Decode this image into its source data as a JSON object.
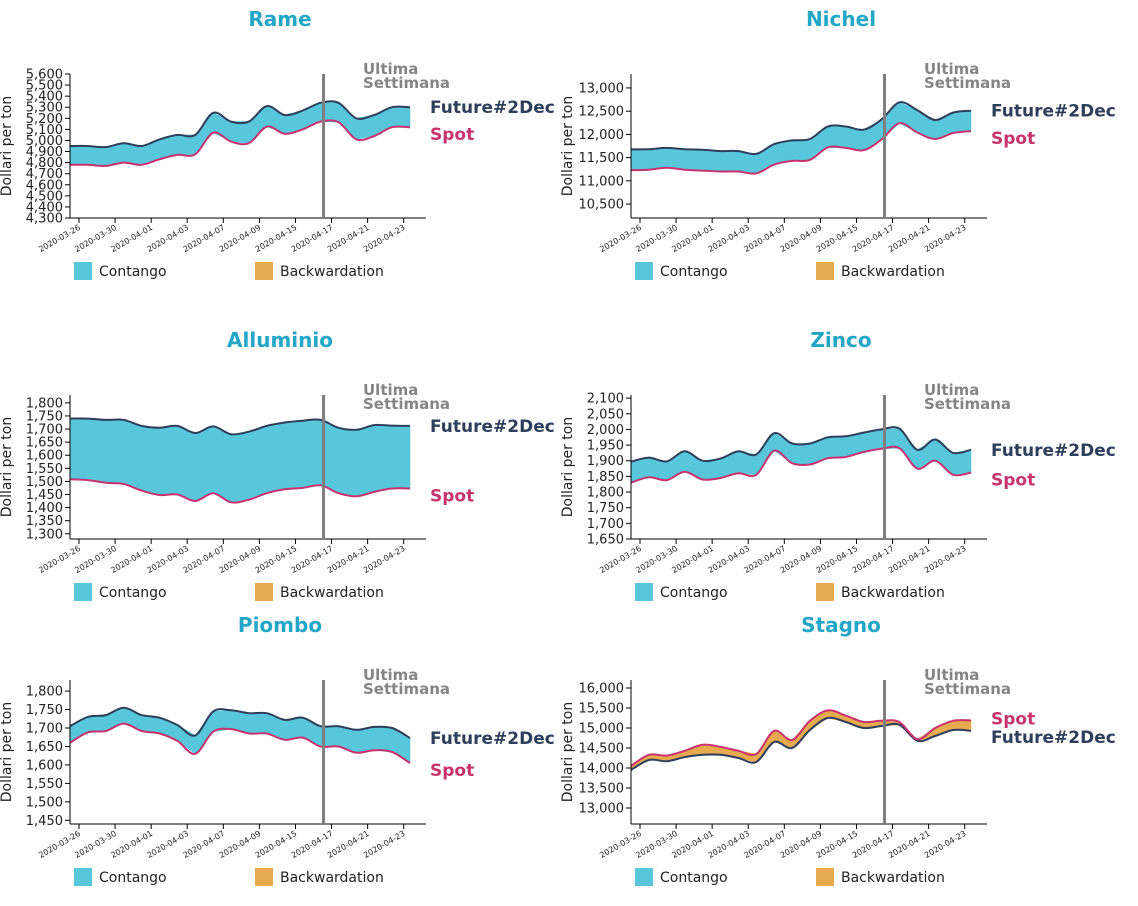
{
  "colors": {
    "title": "#22a7c6",
    "contango": "#58c7dc",
    "backwardation": "#e8aa4e",
    "future_line": "#2e3f5c",
    "spot_line": "#c7336f",
    "week_line": "#7f7f7f",
    "week_label": "#858585"
  },
  "labels": {
    "ylabel": "Dollari per ton",
    "week_line1": "Ultima",
    "week_line2": "Settimana",
    "future": "Future#2Dec",
    "spot": "Spot",
    "legend_contango": "Contango",
    "legend_backwardation": "Backwardation"
  },
  "chart_data": [
    {
      "type": "area",
      "title": "Rame",
      "xlabel": "",
      "ylabel": "Dollari per ton",
      "ylim": [
        4300,
        5600
      ],
      "yticks": [
        4300,
        4400,
        4500,
        4600,
        4700,
        4800,
        4900,
        5000,
        5100,
        5200,
        5300,
        5400,
        5500,
        5600
      ],
      "x_tick_labels": [
        "2020-03-26",
        "2020-03-30",
        "2020-04-01",
        "2020-04-03",
        "2020-04-07",
        "2020-04-09",
        "2020-04-15",
        "2020-04-17",
        "2020-04-21",
        "2020-04-23"
      ],
      "last_week_index": 14,
      "series": [
        {
          "name": "Future#2Dec",
          "values": [
            4950,
            4950,
            4940,
            4975,
            4950,
            5010,
            5050,
            5050,
            5250,
            5170,
            5170,
            5310,
            5230,
            5270,
            5340,
            5340,
            5200,
            5230,
            5300,
            5300
          ]
        },
        {
          "name": "Spot",
          "values": [
            4780,
            4780,
            4770,
            4800,
            4780,
            4830,
            4870,
            4875,
            5070,
            4990,
            4975,
            5125,
            5060,
            5100,
            5170,
            5165,
            5010,
            5040,
            5120,
            5120
          ]
        }
      ]
    },
    {
      "type": "area",
      "title": "Nichel",
      "xlabel": "",
      "ylabel": "Dollari per ton",
      "ylim": [
        10200,
        13300
      ],
      "yticks": [
        10500,
        11000,
        11500,
        12000,
        12500,
        13000
      ],
      "x_tick_labels": [
        "2020-03-26",
        "2020-03-30",
        "2020-04-01",
        "2020-04-03",
        "2020-04-07",
        "2020-04-09",
        "2020-04-15",
        "2020-04-17",
        "2020-04-21",
        "2020-04-23"
      ],
      "last_week_index": 14,
      "series": [
        {
          "name": "Future#2Dec",
          "values": [
            11680,
            11680,
            11710,
            11680,
            11670,
            11640,
            11640,
            11580,
            11790,
            11870,
            11900,
            12170,
            12170,
            12100,
            12320,
            12690,
            12520,
            12310,
            12470,
            12510
          ]
        },
        {
          "name": "Spot",
          "values": [
            11230,
            11240,
            11280,
            11240,
            11220,
            11200,
            11200,
            11160,
            11350,
            11430,
            11450,
            11720,
            11710,
            11660,
            11890,
            12240,
            12040,
            11900,
            12030,
            12070
          ]
        }
      ]
    },
    {
      "type": "area",
      "title": "Alluminio",
      "xlabel": "",
      "ylabel": "Dollari per ton",
      "ylim": [
        1280,
        1830
      ],
      "yticks": [
        1300,
        1350,
        1400,
        1450,
        1500,
        1550,
        1600,
        1650,
        1700,
        1750,
        1800
      ],
      "x_tick_labels": [
        "2020-03-26",
        "2020-03-30",
        "2020-04-01",
        "2020-04-03",
        "2020-04-07",
        "2020-04-09",
        "2020-04-15",
        "2020-04-17",
        "2020-04-21",
        "2020-04-23"
      ],
      "last_week_index": 14,
      "series": [
        {
          "name": "Future#2Dec",
          "values": [
            1740,
            1740,
            1735,
            1735,
            1712,
            1705,
            1712,
            1685,
            1710,
            1680,
            1690,
            1712,
            1725,
            1732,
            1735,
            1705,
            1697,
            1715,
            1713,
            1712
          ]
        },
        {
          "name": "Spot",
          "values": [
            1508,
            1505,
            1495,
            1490,
            1465,
            1448,
            1450,
            1425,
            1455,
            1420,
            1430,
            1455,
            1470,
            1475,
            1485,
            1455,
            1443,
            1460,
            1473,
            1473
          ]
        }
      ]
    },
    {
      "type": "area",
      "title": "Zinco",
      "xlabel": "",
      "ylabel": "Dollari per ton",
      "ylim": [
        1650,
        2110
      ],
      "yticks": [
        1650,
        1700,
        1750,
        1800,
        1850,
        1900,
        1950,
        2000,
        2050,
        2100
      ],
      "x_tick_labels": [
        "2020-03-26",
        "2020-03-30",
        "2020-04-01",
        "2020-04-03",
        "2020-04-07",
        "2020-04-09",
        "2020-04-15",
        "2020-04-17",
        "2020-04-21",
        "2020-04-23"
      ],
      "last_week_index": 14,
      "series": [
        {
          "name": "Future#2Dec",
          "values": [
            1897,
            1910,
            1898,
            1930,
            1900,
            1907,
            1930,
            1920,
            1988,
            1955,
            1955,
            1975,
            1978,
            1990,
            2000,
            2003,
            1935,
            1968,
            1925,
            1935
          ]
        },
        {
          "name": "Spot",
          "values": [
            1830,
            1847,
            1838,
            1865,
            1840,
            1845,
            1860,
            1855,
            1932,
            1892,
            1888,
            1908,
            1912,
            1928,
            1938,
            1940,
            1875,
            1900,
            1855,
            1862
          ]
        }
      ]
    },
    {
      "type": "area",
      "title": "Piombo",
      "xlabel": "",
      "ylabel": "Dollari per ton",
      "ylim": [
        1440,
        1830
      ],
      "yticks": [
        1450,
        1500,
        1550,
        1600,
        1650,
        1700,
        1750,
        1800
      ],
      "x_tick_labels": [
        "2020-03-26",
        "2020-03-30",
        "2020-04-01",
        "2020-04-03",
        "2020-04-07",
        "2020-04-09",
        "2020-04-15",
        "2020-04-17",
        "2020-04-21",
        "2020-04-23"
      ],
      "last_week_index": 14,
      "series": [
        {
          "name": "Future#2Dec",
          "values": [
            1705,
            1730,
            1735,
            1755,
            1735,
            1728,
            1708,
            1680,
            1745,
            1748,
            1740,
            1740,
            1722,
            1728,
            1705,
            1705,
            1695,
            1703,
            1700,
            1673
          ]
        },
        {
          "name": "Spot",
          "values": [
            1660,
            1688,
            1692,
            1712,
            1692,
            1685,
            1665,
            1630,
            1690,
            1697,
            1685,
            1685,
            1668,
            1674,
            1650,
            1650,
            1633,
            1640,
            1635,
            1605
          ]
        }
      ]
    },
    {
      "type": "area",
      "title": "Stagno",
      "xlabel": "",
      "ylabel": "Dollari per ton",
      "ylim": [
        12600,
        16200
      ],
      "yticks": [
        13000,
        13500,
        14000,
        14500,
        15000,
        15500,
        16000
      ],
      "x_tick_labels": [
        "2020-03-26",
        "2020-03-30",
        "2020-04-01",
        "2020-04-03",
        "2020-04-07",
        "2020-04-09",
        "2020-04-15",
        "2020-04-17",
        "2020-04-21",
        "2020-04-23"
      ],
      "last_week_index": 14,
      "series": [
        {
          "name": "Future#2Dec",
          "values": [
            13950,
            14200,
            14170,
            14270,
            14330,
            14330,
            14250,
            14150,
            14650,
            14500,
            14950,
            15250,
            15150,
            15000,
            15050,
            15080,
            14680,
            14800,
            14950,
            14930
          ]
        },
        {
          "name": "Spot",
          "values": [
            14050,
            14330,
            14310,
            14430,
            14580,
            14530,
            14430,
            14350,
            14930,
            14700,
            15180,
            15440,
            15310,
            15150,
            15180,
            15150,
            14720,
            15000,
            15180,
            15190
          ]
        }
      ]
    }
  ]
}
